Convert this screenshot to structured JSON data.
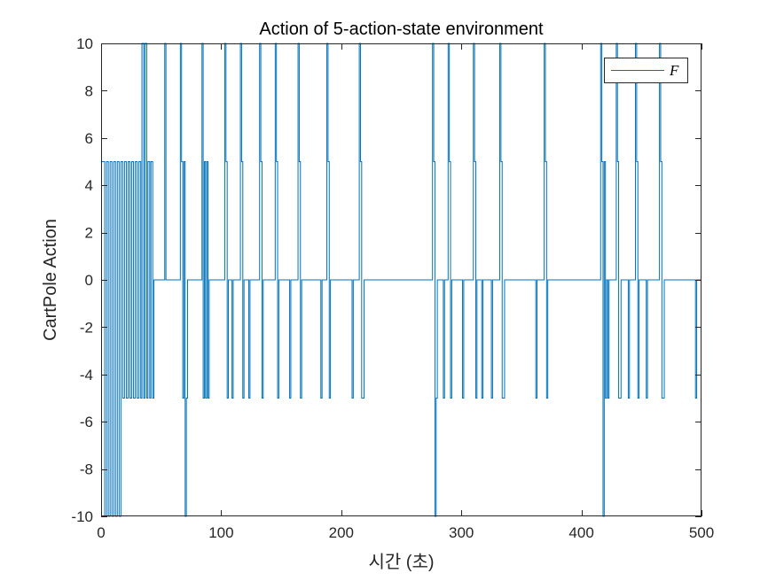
{
  "chart_data": {
    "type": "line",
    "title": "Action of 5-action-state environment",
    "xlabel": "시간 (초)",
    "ylabel": "CartPole Action",
    "xlim": [
      0,
      500
    ],
    "ylim": [
      -10,
      10
    ],
    "xticks": [
      0,
      100,
      200,
      300,
      400,
      500
    ],
    "yticks": [
      -10,
      -8,
      -6,
      -4,
      -2,
      0,
      2,
      4,
      6,
      8,
      10
    ],
    "grid": false,
    "legend_position": "top-right",
    "line_style": "step",
    "series": [
      {
        "name": "F",
        "color": "#0072BD",
        "points": [
          [
            0,
            5
          ],
          [
            3,
            -10
          ],
          [
            4.5,
            5
          ],
          [
            6,
            -10
          ],
          [
            7.5,
            5
          ],
          [
            9,
            -10
          ],
          [
            10.5,
            5
          ],
          [
            12,
            -10
          ],
          [
            13.5,
            5
          ],
          [
            15,
            -10
          ],
          [
            16.5,
            5
          ],
          [
            18,
            -5
          ],
          [
            19.5,
            5
          ],
          [
            21,
            -5
          ],
          [
            22.5,
            5
          ],
          [
            24,
            -5
          ],
          [
            25.5,
            5
          ],
          [
            27,
            -5
          ],
          [
            28.5,
            5
          ],
          [
            30,
            -5
          ],
          [
            31.5,
            5
          ],
          [
            33,
            -5
          ],
          [
            34,
            10
          ],
          [
            35.5,
            -5
          ],
          [
            36.5,
            10
          ],
          [
            38,
            -5
          ],
          [
            39,
            5
          ],
          [
            40.5,
            -5
          ],
          [
            41.5,
            5
          ],
          [
            43,
            -5
          ],
          [
            44,
            0
          ],
          [
            53,
            10
          ],
          [
            54,
            0
          ],
          [
            66,
            10
          ],
          [
            67,
            5
          ],
          [
            68,
            -5
          ],
          [
            69,
            5
          ],
          [
            70,
            -10
          ],
          [
            71,
            -5
          ],
          [
            72,
            0
          ],
          [
            84,
            10
          ],
          [
            85,
            -5
          ],
          [
            86,
            5
          ],
          [
            87,
            -5
          ],
          [
            88,
            5
          ],
          [
            89,
            -5
          ],
          [
            90,
            0
          ],
          [
            103,
            10
          ],
          [
            104,
            5
          ],
          [
            105,
            -5
          ],
          [
            106,
            0
          ],
          [
            109,
            -5
          ],
          [
            110,
            0
          ],
          [
            116,
            10
          ],
          [
            117,
            5
          ],
          [
            118,
            -5
          ],
          [
            119,
            0
          ],
          [
            123,
            -5
          ],
          [
            124,
            0
          ],
          [
            132,
            10
          ],
          [
            133,
            5
          ],
          [
            134,
            -5
          ],
          [
            135,
            0
          ],
          [
            145,
            10
          ],
          [
            146,
            5
          ],
          [
            147,
            -5
          ],
          [
            148,
            0
          ],
          [
            157,
            -5
          ],
          [
            158,
            0
          ],
          [
            164,
            10
          ],
          [
            165,
            5
          ],
          [
            166,
            -5
          ],
          [
            167,
            0
          ],
          [
            183,
            -5
          ],
          [
            184,
            0
          ],
          [
            188,
            10
          ],
          [
            189,
            5
          ],
          [
            190,
            -5
          ],
          [
            191,
            0
          ],
          [
            209,
            -5
          ],
          [
            210,
            0
          ],
          [
            215,
            10
          ],
          [
            216,
            5
          ],
          [
            217,
            -5
          ],
          [
            219,
            0
          ],
          [
            276,
            10
          ],
          [
            277,
            5
          ],
          [
            278,
            -10
          ],
          [
            279,
            -5
          ],
          [
            280,
            0
          ],
          [
            285,
            -5
          ],
          [
            286,
            0
          ],
          [
            289,
            10
          ],
          [
            290,
            5
          ],
          [
            291,
            -5
          ],
          [
            292,
            0
          ],
          [
            301,
            -5
          ],
          [
            302,
            0
          ],
          [
            310,
            10
          ],
          [
            311,
            5
          ],
          [
            312,
            -5
          ],
          [
            313,
            0
          ],
          [
            317,
            -5
          ],
          [
            318,
            0
          ],
          [
            325,
            -5
          ],
          [
            326,
            0
          ],
          [
            332,
            10
          ],
          [
            333,
            5
          ],
          [
            334,
            -5
          ],
          [
            336,
            0
          ],
          [
            362,
            -5
          ],
          [
            363,
            0
          ],
          [
            369,
            10
          ],
          [
            370,
            5
          ],
          [
            371,
            -5
          ],
          [
            372,
            0
          ],
          [
            416,
            10
          ],
          [
            417,
            5
          ],
          [
            418,
            -10
          ],
          [
            419,
            5
          ],
          [
            420,
            -5
          ],
          [
            421,
            0
          ],
          [
            422,
            -5
          ],
          [
            423,
            0
          ],
          [
            429,
            10
          ],
          [
            430,
            5
          ],
          [
            431,
            -5
          ],
          [
            433,
            0
          ],
          [
            439,
            -5
          ],
          [
            440,
            0
          ],
          [
            445,
            10
          ],
          [
            446,
            5
          ],
          [
            447,
            -5
          ],
          [
            448,
            0
          ],
          [
            454,
            -5
          ],
          [
            455,
            0
          ],
          [
            465,
            10
          ],
          [
            466,
            5
          ],
          [
            467,
            -5
          ],
          [
            469,
            0
          ],
          [
            495,
            -5
          ],
          [
            496,
            0
          ],
          [
            500,
            0
          ]
        ]
      }
    ]
  }
}
